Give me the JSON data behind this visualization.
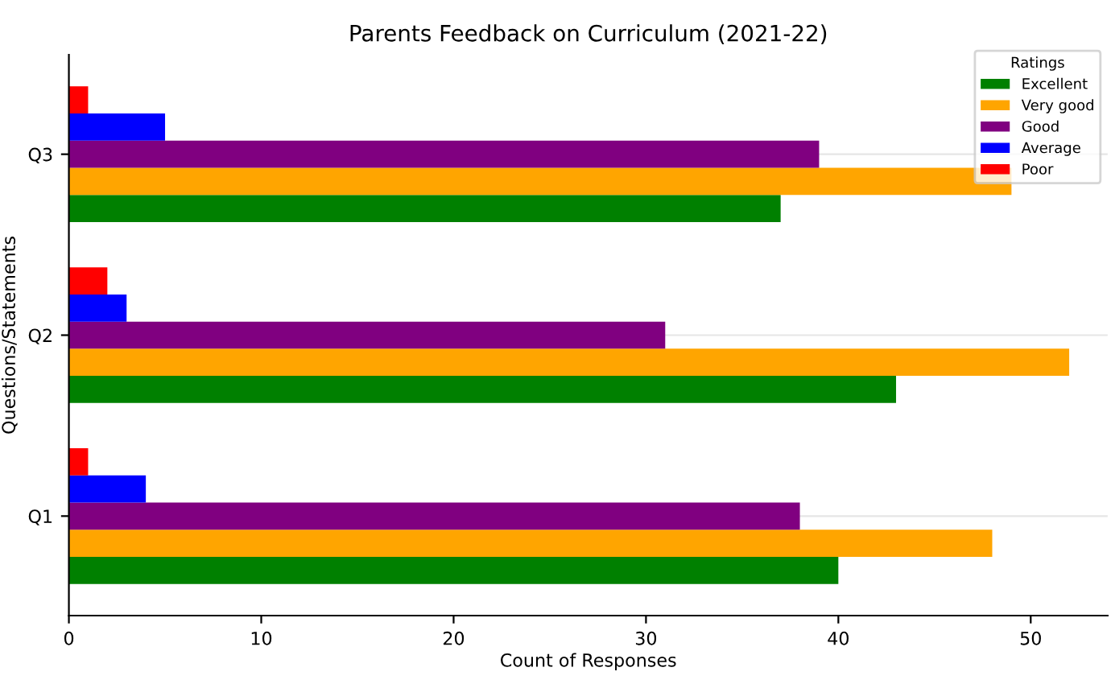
{
  "chart_data": {
    "type": "bar",
    "orientation": "horizontal",
    "title": "Parents Feedback on Curriculum (2021-22)",
    "xlabel": "Count of Responses",
    "ylabel": "Questions/Statements",
    "legend_title": "Ratings",
    "legend": "top right",
    "grid": "y",
    "categories": [
      "Q3",
      "Q2",
      "Q1"
    ],
    "series": [
      {
        "name": "Excellent",
        "color": "#008000",
        "values": [
          37,
          43,
          40
        ]
      },
      {
        "name": "Very good",
        "color": "#ffa500",
        "values": [
          49,
          52,
          48
        ]
      },
      {
        "name": "Good",
        "color": "#800080",
        "values": [
          39,
          31,
          38
        ]
      },
      {
        "name": "Average",
        "color": "#0000ff",
        "values": [
          5,
          3,
          4
        ]
      },
      {
        "name": "Poor",
        "color": "#ff0000",
        "values": [
          1,
          2,
          1
        ]
      }
    ],
    "xlim": [
      0,
      54
    ],
    "xticks": [
      0,
      10,
      20,
      30,
      40,
      50
    ]
  }
}
